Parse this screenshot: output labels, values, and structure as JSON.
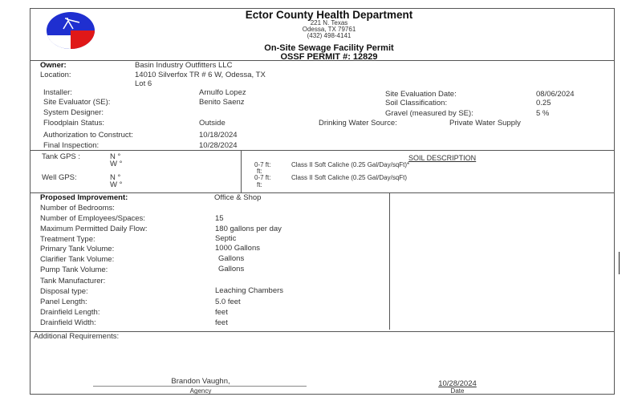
{
  "header": {
    "agency": "Ector County Health Department",
    "address1": "221 N. Texas",
    "address2": "Odessa, TX 79761",
    "phone": "(432) 498-4141",
    "permit_title": "On-Site Sewage Facility Permit",
    "permit_number": "OSSF PERMIT #: 12829",
    "logo_colors": {
      "blue": "#1f2fd0",
      "red": "#e01818",
      "white": "#ffffff"
    }
  },
  "owner": {
    "label": "Owner:",
    "value": "Basin Industry Outfitters LLC"
  },
  "location": {
    "label": "Location:",
    "value": "14010 Silverfox TR # 6 W, Odessa,  TX",
    "lot": "Lot 6"
  },
  "left_fields": [
    {
      "label": "Installer:",
      "value": "Arnulfo Lopez"
    },
    {
      "label": "Site Evaluator (SE):",
      "value": "Benito Saenz"
    },
    {
      "label": "System Designer:",
      "value": ""
    },
    {
      "label": "Floodplain Status:",
      "value": "Outside"
    },
    {
      "label": "Authorization to Construct:",
      "value": "10/18/2024"
    },
    {
      "label": "Final Inspection:",
      "value": "10/28/2024"
    }
  ],
  "right_fields": [
    {
      "label": "Site Evaluation Date:",
      "value": "08/06/2024"
    },
    {
      "label": "Soil Classification:",
      "value": "0.25"
    },
    {
      "label": "Gravel (measured by SE):",
      "value": "5 %"
    }
  ],
  "drinking_water": {
    "label": "Drinking Water Source:",
    "value": "Private Water Supply"
  },
  "gps": {
    "tank_label": "Tank GPS :",
    "tank_n": "N °",
    "tank_w": "W °",
    "well_label": "Well GPS:",
    "well_n": "N °",
    "well_w": "W °"
  },
  "soil": {
    "title": "SOIL DESCRIPTION",
    "rows": [
      {
        "depth": "0-7 ft:",
        "desc": "Class II Soft Caliche (0.25 Gal/Day/sqFt)*",
        "sub": "ft:"
      },
      {
        "depth": "0-7 ft:",
        "desc": "Class II Soft Caliche (0.25 Gal/Day/sqFt)",
        "sub": "ft:"
      }
    ]
  },
  "improvement": [
    {
      "label": "Proposed Improvement:",
      "value": "Office & Shop"
    },
    {
      "label": "Number of Bedrooms:",
      "value": ""
    },
    {
      "label": "Number of Employees/Spaces:",
      "value": "15"
    },
    {
      "label": "Maximum Permitted Daily Flow:",
      "value": "180 gallons per day"
    },
    {
      "label": "Treatment Type:",
      "value": "Septic"
    },
    {
      "label": "Primary Tank Volume:",
      "value": "1000 Gallons"
    },
    {
      "label": "Clarifier Tank Volume:",
      "value": " Gallons"
    },
    {
      "label": "Pump Tank Volume:",
      "value": " Gallons"
    },
    {
      "label": "Tank Manufacturer:",
      "value": ""
    },
    {
      "label": "Disposal type:",
      "value": "Leaching Chambers"
    },
    {
      "label": "Panel Length:",
      "value": "5.0 feet"
    },
    {
      "label": "Drainfield Length:",
      "value": " feet"
    },
    {
      "label": "Drainfield Width:",
      "value": " feet"
    }
  ],
  "additional": {
    "label": "Additional Requirements:",
    "value": ""
  },
  "signature": {
    "name": "Brandon Vaughn,",
    "name_caption": "Agency",
    "date": "10/28/2024",
    "date_caption": "Date"
  }
}
